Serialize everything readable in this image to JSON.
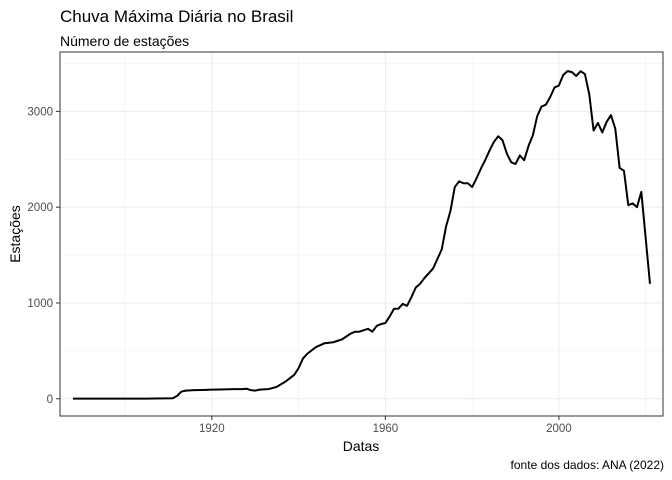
{
  "title": "Chuva Máxima Diária no Brasil",
  "subtitle": "Número de estações",
  "caption": "fonte dos dados: ANA (2022)",
  "chart_data": {
    "type": "line",
    "xlabel": "Datas",
    "ylabel": "Estações",
    "xlim": [
      1885,
      2024
    ],
    "ylim": [
      -180,
      3620
    ],
    "xticks": [
      1920,
      1960,
      2000
    ],
    "yticks": [
      0,
      1000,
      2000,
      3000
    ],
    "grid": true,
    "line_color": "#000000",
    "x": [
      1888,
      1895,
      1905,
      1911,
      1912,
      1913,
      1914,
      1915,
      1916,
      1918,
      1920,
      1922,
      1925,
      1927,
      1928,
      1929,
      1930,
      1931,
      1933,
      1935,
      1937,
      1939,
      1940,
      1941,
      1942,
      1944,
      1946,
      1948,
      1950,
      1952,
      1953,
      1954,
      1956,
      1957,
      1958,
      1959,
      1960,
      1961,
      1962,
      1963,
      1964,
      1965,
      1966,
      1967,
      1968,
      1969,
      1970,
      1971,
      1972,
      1973,
      1974,
      1975,
      1976,
      1977,
      1978,
      1979,
      1980,
      1981,
      1982,
      1983,
      1984,
      1985,
      1986,
      1987,
      1988,
      1989,
      1990,
      1991,
      1992,
      1993,
      1994,
      1995,
      1996,
      1997,
      1998,
      1999,
      2000,
      2001,
      2002,
      2003,
      2004,
      2005,
      2006,
      2007,
      2008,
      2009,
      2010,
      2011,
      2012,
      2013,
      2014,
      2015,
      2016,
      2017,
      2018,
      2019,
      2020,
      2021
    ],
    "series": [
      {
        "values": [
          2,
          2,
          2,
          5,
          30,
          75,
          85,
          88,
          90,
          92,
          95,
          97,
          100,
          100,
          105,
          90,
          85,
          95,
          100,
          125,
          180,
          250,
          320,
          420,
          470,
          540,
          580,
          590,
          620,
          680,
          700,
          700,
          730,
          700,
          760,
          780,
          790,
          860,
          940,
          940,
          990,
          970,
          1060,
          1160,
          1200,
          1260,
          1310,
          1360,
          1460,
          1560,
          1800,
          1960,
          2210,
          2270,
          2250,
          2250,
          2210,
          2300,
          2400,
          2490,
          2590,
          2680,
          2740,
          2700,
          2560,
          2470,
          2450,
          2540,
          2490,
          2640,
          2750,
          2950,
          3050,
          3070,
          3150,
          3250,
          3270,
          3380,
          3420,
          3410,
          3370,
          3420,
          3390,
          3180,
          2800,
          2880,
          2780,
          2890,
          2960,
          2820,
          2410,
          2380,
          2020,
          2040,
          2000,
          2160,
          1680,
          1200
        ]
      }
    ]
  }
}
